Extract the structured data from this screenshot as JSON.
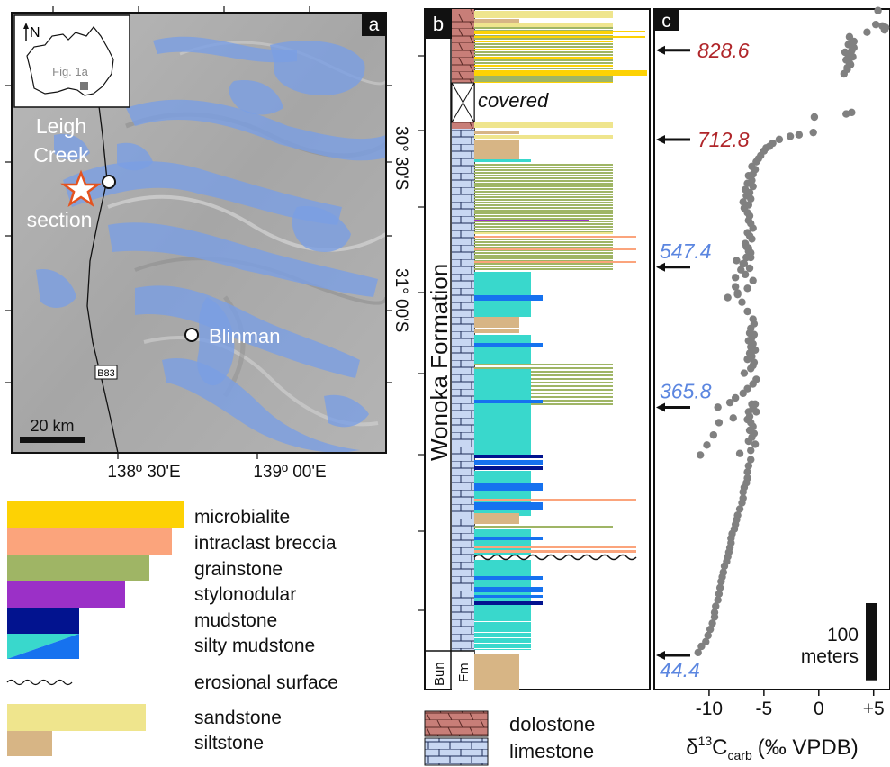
{
  "panels": {
    "a": {
      "letter": "a",
      "north": "N",
      "inset_label": "Fig. 1a",
      "places": {
        "leigh_line1": "Leigh",
        "leigh_line2": "Creek",
        "section": "section",
        "blinman": "Blinman"
      },
      "road": "B83",
      "lat_labels": [
        "30° 30'S",
        "31° 00'S"
      ],
      "lon_labels": [
        "138º 30'E",
        "139º 00'E"
      ],
      "scale_label": "20 km",
      "colors": {
        "outcrop": "#7b9fe3",
        "star": "#e4531f"
      }
    },
    "b": {
      "letter": "b",
      "formation": "Wonoka Formation",
      "covered": "covered",
      "bun_line1": "Bun",
      "bun_line2": "Fm"
    },
    "c": {
      "letter": "c"
    }
  },
  "legend": {
    "items": [
      {
        "label": "microbialite",
        "color": "#fdd204"
      },
      {
        "label": "intraclast breccia",
        "color": "#fba47c"
      },
      {
        "label": "grainstone",
        "color": "#9fb565"
      },
      {
        "label": "stylonodular",
        "color": "#9b30c7"
      },
      {
        "label": "mudstone",
        "color": "#02138f"
      },
      {
        "label": "silty mudstone",
        "colors": [
          "#1672ef",
          "#39d8cc"
        ]
      },
      {
        "label": "erosional surface"
      },
      {
        "label": "sandstone",
        "color": "#efe58d"
      },
      {
        "label": "siltstone",
        "color": "#d7b585"
      }
    ],
    "lithology": [
      {
        "label": "dolostone",
        "color": "#c87e78"
      },
      {
        "label": "limestone",
        "color": "#c8d7f2"
      }
    ]
  },
  "chart_data": {
    "type": "scatter",
    "x_axis_title": "δ13Ccarb (‰ VPDB)",
    "x_axis_title_parts": {
      "delta": "δ",
      "sup": "13",
      "c": "C",
      "sub": "carb",
      "unit": "(‰ VPDB)"
    },
    "xlim": [
      -15,
      6.5
    ],
    "x_ticks": [
      -10,
      -5,
      0,
      5
    ],
    "x_tick_labels": [
      "-10",
      "-5",
      "0",
      "+5"
    ],
    "ylim": [
      0,
      882
    ],
    "y_unit": "meters",
    "scale_bar": {
      "value": 100,
      "label_line1": "100",
      "label_line2": "meters"
    },
    "highlighted_heights": [
      {
        "value": 828.6,
        "label": "828.6",
        "color": "#b0262a"
      },
      {
        "value": 712.8,
        "label": "712.8",
        "color": "#b0262a"
      },
      {
        "value": 547.4,
        "label": "547.4",
        "color": "#5b86e0"
      },
      {
        "value": 365.8,
        "label": "365.8",
        "color": "#5b86e0"
      },
      {
        "value": 44.4,
        "label": "44.4",
        "color": "#5b86e0"
      }
    ],
    "point_color": "#808080",
    "series": [
      {
        "x": [
          -11.0,
          -10.7,
          -10.3,
          -10.1,
          -9.9,
          -9.7,
          -9.5,
          -9.5,
          -9.4,
          -9.2,
          -9.1,
          -9.0,
          -8.9,
          -8.8,
          -8.7,
          -8.6,
          -8.4,
          -8.3,
          -8.2,
          -8.1,
          -8.0,
          -8.0,
          -7.9,
          -7.7,
          -7.6,
          -7.5,
          -7.4,
          -7.2,
          -7.0,
          -6.9,
          -6.9,
          -6.8,
          -6.6,
          -6.5,
          -6.5,
          -6.4,
          -6.2
        ],
        "y": [
          48,
          56,
          62,
          70,
          78,
          86,
          94,
          100,
          108,
          116,
          124,
          132,
          140,
          146,
          152,
          160,
          166,
          172,
          178,
          184,
          190,
          196,
          202,
          208,
          214,
          220,
          226,
          234,
          242,
          248,
          256,
          262,
          268,
          274,
          282,
          290,
          298
        ]
      },
      {
        "x": [
          -7.2,
          -6.2,
          -5.8,
          -6.4,
          -6.1,
          -5.9,
          -6.3,
          -6.0,
          -6.2,
          -6.5,
          -6.3,
          -5.7,
          -6.0,
          -6.1
        ],
        "y": [
          306,
          310,
          318,
          322,
          327,
          332,
          336,
          341,
          346,
          350,
          354,
          360,
          364,
          370
        ]
      },
      {
        "x": [
          -10.8,
          -10.2,
          -9.6,
          -9.1,
          -7.8,
          -6.4,
          -6.0,
          -5.8
        ],
        "y": [
          304,
          317,
          330,
          346,
          352,
          360,
          364,
          370
        ]
      },
      {
        "x": [
          -9.2,
          -8.1,
          -7.6,
          -6.9,
          -6.5,
          -6.0,
          -5.7
        ],
        "y": [
          366,
          372,
          378,
          384,
          390,
          396,
          402
        ]
      },
      {
        "x": [
          -6.8,
          -6.2,
          -6.0,
          -5.9,
          -6.5,
          -6.1,
          -6.3,
          -5.8,
          -6.2,
          -6.0,
          -6.4,
          -6.1,
          -5.9,
          -6.3,
          -6.2,
          -5.9
        ],
        "y": [
          410,
          416,
          420,
          424,
          428,
          432,
          436,
          440,
          444,
          448,
          452,
          456,
          460,
          462,
          468,
          474
        ]
      },
      {
        "x": [
          -6.0,
          -6.5,
          -7.0,
          -7.4,
          -7.6,
          -7.6,
          -7.1,
          -6.9,
          -6.6
        ],
        "y": [
          480,
          490,
          502,
          512,
          522,
          534,
          544,
          552,
          560
        ]
      },
      {
        "x": [
          -8.3,
          -7.4,
          -6.5,
          -6.0,
          -6.7,
          -6.3,
          -6.8,
          -6.2,
          -6.4,
          -6.6
        ],
        "y": [
          508,
          514,
          520,
          530,
          538,
          546,
          552,
          560,
          568,
          574
        ]
      },
      {
        "x": [
          -7.5,
          -6.6,
          -6.2,
          -6.4,
          -6.7,
          -6.1,
          -6.3,
          -6.5,
          -6.0,
          -6.2,
          -6.4,
          -6.3
        ],
        "y": [
          556,
          560,
          566,
          572,
          578,
          584,
          588,
          592,
          598,
          604,
          608,
          614
        ]
      },
      {
        "x": [
          -6.5,
          -6.8,
          -6.4,
          -6.9,
          -6.2,
          -6.6,
          -6.3,
          -6.7,
          -6.0,
          -6.5,
          -6.1,
          -6.4
        ],
        "y": [
          618,
          624,
          628,
          632,
          636,
          640,
          644,
          648,
          652,
          656,
          660,
          666
        ]
      },
      {
        "x": [
          -6.0,
          -5.8,
          -6.1,
          -5.7,
          -5.5,
          -5.3,
          -5.0,
          -4.8
        ],
        "y": [
          668,
          674,
          678,
          684,
          688,
          692,
          698,
          702
        ]
      },
      {
        "x": [
          -4.5,
          -4.2,
          -3.6,
          -2.6,
          -1.8,
          -0.5
        ],
        "y": [
          704,
          708,
          713,
          717,
          719,
          722
        ]
      },
      {
        "x": [
          -0.4,
          2.5,
          3.0,
          2.6,
          2.8,
          3.1,
          2.4,
          3.2,
          2.7
        ],
        "y": [
          742,
          746,
          748,
          806,
          812,
          820,
          826,
          832,
          836
        ]
      },
      {
        "x": [
          2.3,
          2.6,
          2.9,
          2.5,
          2.7,
          3.0,
          3.2,
          2.8,
          4.4,
          5.2,
          5.8,
          6.1,
          6.0,
          5.4
        ],
        "y": [
          798,
          804,
          810,
          816,
          822,
          828,
          840,
          846,
          852,
          862,
          860,
          858,
          855,
          880
        ]
      }
    ]
  }
}
